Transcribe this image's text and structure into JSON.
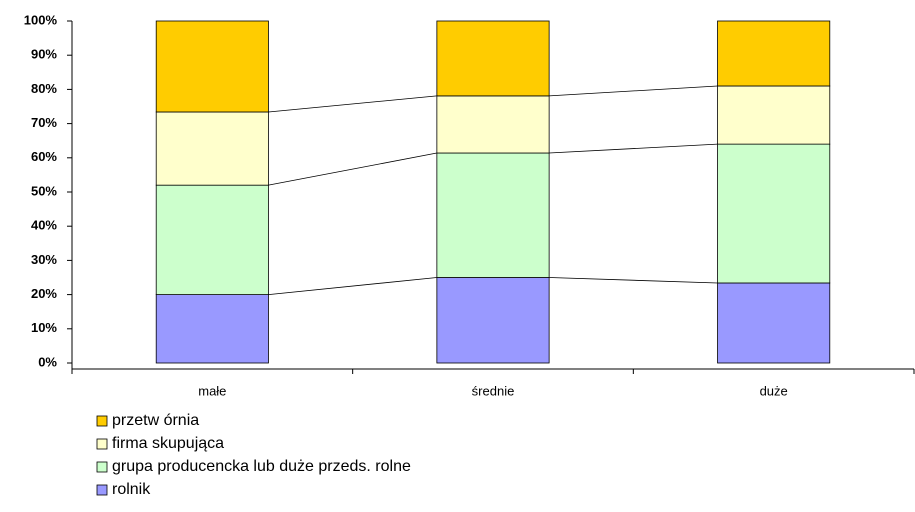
{
  "chart_data": {
    "type": "stacked_bar_percent",
    "categories": [
      "małe",
      "średnie",
      "duże"
    ],
    "series": [
      {
        "name": "rolnik",
        "color": "#9999ff",
        "values": [
          20,
          25,
          23.4
        ]
      },
      {
        "name": "grupa producencka lub duże przeds. rolne",
        "color": "#ccffcc",
        "values": [
          32,
          36.4,
          40.6
        ]
      },
      {
        "name": "firma skupująca",
        "color": "#ffffcc",
        "values": [
          21.4,
          16.7,
          17
        ]
      },
      {
        "name": "przetw órnia",
        "color": "#ffcc00",
        "values": [
          26.6,
          21.9,
          19
        ]
      }
    ],
    "ylim": [
      0,
      100
    ],
    "yticks": [
      {
        "value": 0,
        "label": "0%"
      },
      {
        "value": 10,
        "label": "10%"
      },
      {
        "value": 20,
        "label": "20%"
      },
      {
        "value": 30,
        "label": "30%"
      },
      {
        "value": 40,
        "label": "40%"
      },
      {
        "value": 50,
        "label": "50%"
      },
      {
        "value": 60,
        "label": "60%"
      },
      {
        "value": 70,
        "label": "70%"
      },
      {
        "value": 80,
        "label": "80%"
      },
      {
        "value": 90,
        "label": "90%"
      },
      {
        "value": 100,
        "label": "100%"
      }
    ],
    "legend": "bottom-left"
  }
}
